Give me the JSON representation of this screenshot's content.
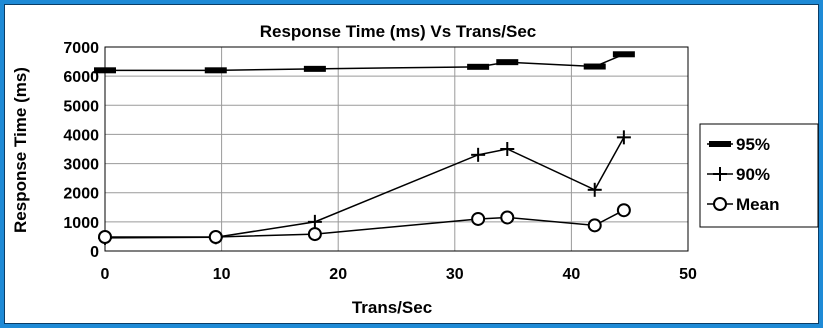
{
  "chart_data": {
    "type": "line",
    "title": "Response Time (ms)  Vs Trans/Sec",
    "xlabel": "Trans/Sec",
    "ylabel": "Response Time (ms)",
    "xlim": [
      0,
      50
    ],
    "ylim": [
      0,
      7000
    ],
    "xticks": [
      0,
      10,
      20,
      30,
      40,
      50
    ],
    "yticks": [
      0,
      1000,
      2000,
      3000,
      4000,
      5000,
      6000,
      7000
    ],
    "grid": "vertical major lines, horizontal lines",
    "legend_position": "right",
    "series": [
      {
        "name": "95%",
        "marker": "dash",
        "x": [
          0,
          9.5,
          18,
          32,
          34.5,
          42,
          44.5
        ],
        "y": [
          6200,
          6200,
          6250,
          6320,
          6480,
          6330,
          6750
        ]
      },
      {
        "name": "90%",
        "marker": "plus",
        "x": [
          0,
          9.5,
          18,
          32,
          34.5,
          42,
          44.5
        ],
        "y": [
          450,
          470,
          1000,
          3300,
          3500,
          2100,
          3900
        ]
      },
      {
        "name": "Mean",
        "marker": "circle",
        "x": [
          0,
          9.5,
          18,
          32,
          34.5,
          42,
          44.5
        ],
        "y": [
          480,
          480,
          580,
          1100,
          1150,
          880,
          1400
        ]
      }
    ]
  },
  "colors": {
    "background": "#1e8ad6",
    "plot_border": "#000000",
    "grid": "#9a9a9a",
    "series": "#000000"
  }
}
